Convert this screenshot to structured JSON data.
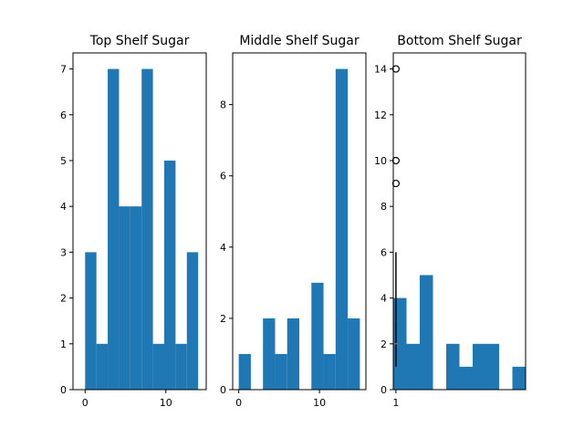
{
  "chart_data": [
    {
      "type": "bar",
      "title": "Top Shelf Sugar",
      "xlabel": "",
      "ylabel": "",
      "color": "#1f77b4",
      "bin_edges": [
        0,
        1.4,
        2.8,
        4.2,
        5.6,
        7.0,
        8.4,
        9.8,
        11.2,
        12.6,
        14.0
      ],
      "values": [
        3,
        1,
        7,
        4,
        4,
        7,
        1,
        5,
        1,
        3
      ],
      "xlim": [
        -1.5,
        15.0
      ],
      "ylim": [
        0,
        7.35
      ],
      "xticks": [
        0,
        10
      ],
      "yticks": [
        0,
        1,
        2,
        3,
        4,
        5,
        6,
        7
      ]
    },
    {
      "type": "bar",
      "title": "Middle Shelf Sugar",
      "xlabel": "",
      "ylabel": "",
      "color": "#1f77b4",
      "bin_edges": [
        0,
        1.5,
        3.0,
        4.5,
        6.0,
        7.5,
        9.0,
        10.5,
        12.0,
        13.5,
        15.0
      ],
      "values": [
        1,
        0,
        2,
        1,
        2,
        0,
        3,
        1,
        9,
        2
      ],
      "xlim": [
        -0.75,
        15.75
      ],
      "ylim": [
        0,
        9.45
      ],
      "xticks": [
        0,
        10
      ],
      "yticks": [
        0,
        2,
        4,
        6,
        8
      ]
    },
    {
      "type": "bar",
      "title": "Bottom Shelf Sugar",
      "xlabel": "",
      "ylabel": "",
      "color": "#1f77b4",
      "bin_edges": [
        0.9,
        1.4,
        1.9,
        2.4,
        2.9,
        3.4,
        3.9,
        4.4,
        4.9,
        5.4,
        5.9
      ],
      "values": [
        4,
        2,
        5,
        0,
        2,
        1,
        2,
        2,
        0,
        1
      ],
      "xlim": [
        0.9,
        5.9
      ],
      "ylim": [
        0,
        14.7
      ],
      "xticks": [
        1
      ],
      "yticks": [
        0,
        2,
        4,
        6,
        8,
        10,
        12,
        14
      ],
      "boxplot": {
        "position": 1,
        "whisker_low": 1,
        "q1": 1,
        "median": 2,
        "q3": 3,
        "whisker_high": 6,
        "outliers": [
          9,
          10,
          14
        ]
      }
    }
  ]
}
